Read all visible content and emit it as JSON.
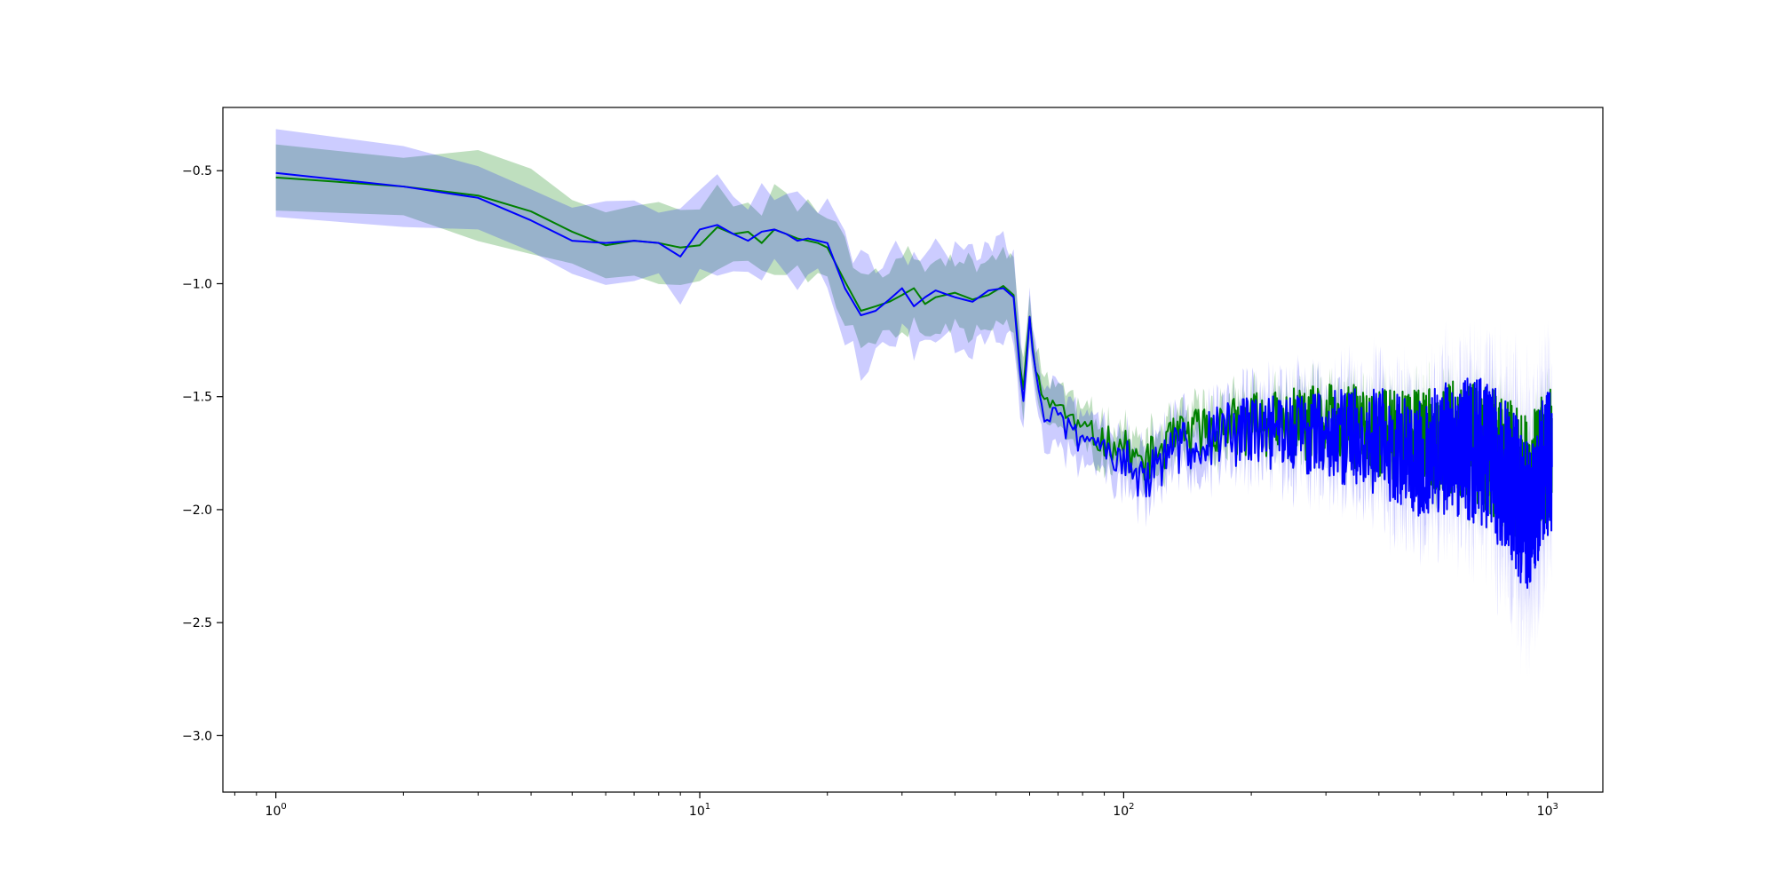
{
  "figure": {
    "background": "#ffffff"
  },
  "chart_data": {
    "type": "line",
    "title": "",
    "xlabel": "",
    "ylabel": "",
    "xscale": "log",
    "xlim": [
      0.75,
      1350
    ],
    "ylim": [
      -3.25,
      -0.22
    ],
    "x_ticks": [
      {
        "value": 1,
        "base": "10",
        "exp": "0"
      },
      {
        "value": 10,
        "base": "10",
        "exp": "1"
      },
      {
        "value": 100,
        "base": "10",
        "exp": "2"
      },
      {
        "value": 1000,
        "base": "10",
        "exp": "3"
      }
    ],
    "y_ticks": [
      {
        "value": -0.5,
        "label": "−0.5"
      },
      {
        "value": -1.0,
        "label": "−1.0"
      },
      {
        "value": -1.5,
        "label": "−1.5"
      },
      {
        "value": -2.0,
        "label": "−2.0"
      },
      {
        "value": -2.5,
        "label": "−2.5"
      },
      {
        "value": -3.0,
        "label": "−3.0"
      }
    ],
    "grid": false,
    "legend": "none",
    "x_range": [
      1,
      1024
    ],
    "series": [
      {
        "color": "#008000",
        "band_fill": "#008000",
        "band_opacity": 0.25,
        "anchors": [
          [
            1,
            -0.53
          ],
          [
            2,
            -0.57
          ],
          [
            3,
            -0.61
          ],
          [
            4,
            -0.68
          ],
          [
            5,
            -0.77
          ],
          [
            6,
            -0.83
          ],
          [
            7,
            -0.81
          ],
          [
            8,
            -0.82
          ],
          [
            9,
            -0.84
          ],
          [
            10,
            -0.83
          ],
          [
            11,
            -0.75
          ],
          [
            12,
            -0.78
          ],
          [
            13,
            -0.77
          ],
          [
            14,
            -0.82
          ],
          [
            15,
            -0.76
          ],
          [
            16,
            -0.78
          ],
          [
            17,
            -0.8
          ],
          [
            18,
            -0.81
          ],
          [
            19,
            -0.82
          ],
          [
            20,
            -0.84
          ],
          [
            22,
            -0.99
          ],
          [
            24,
            -1.12
          ],
          [
            26,
            -1.1
          ],
          [
            28,
            -1.08
          ],
          [
            30,
            -1.05
          ],
          [
            32,
            -1.02
          ],
          [
            34,
            -1.09
          ],
          [
            36,
            -1.06
          ],
          [
            40,
            -1.04
          ],
          [
            44,
            -1.07
          ],
          [
            48,
            -1.05
          ],
          [
            52,
            -1.01
          ],
          [
            55,
            -1.05
          ],
          [
            57,
            -1.37
          ],
          [
            58,
            -1.48
          ],
          [
            60,
            -1.14
          ],
          [
            62,
            -1.35
          ],
          [
            65,
            -1.55
          ],
          [
            70,
            -1.52
          ],
          [
            75,
            -1.6
          ],
          [
            80,
            -1.65
          ],
          [
            90,
            -1.7
          ],
          [
            100,
            -1.72
          ],
          [
            110,
            -1.8
          ],
          [
            130,
            -1.7
          ],
          [
            150,
            -1.65
          ],
          [
            200,
            -1.62
          ],
          [
            300,
            -1.62
          ],
          [
            400,
            -1.65
          ],
          [
            500,
            -1.7
          ],
          [
            600,
            -1.68
          ],
          [
            700,
            -1.72
          ],
          [
            800,
            -1.8
          ],
          [
            900,
            -1.9
          ],
          [
            1000,
            -1.75
          ],
          [
            1024,
            -1.7
          ]
        ],
        "band_halfwidth": [
          [
            1,
            0.16
          ],
          [
            3,
            0.16
          ],
          [
            10,
            0.16
          ],
          [
            20,
            0.15
          ],
          [
            30,
            0.15
          ],
          [
            55,
            0.15
          ],
          [
            60,
            0.1
          ],
          [
            100,
            0.08
          ],
          [
            200,
            0.08
          ],
          [
            400,
            0.09
          ],
          [
            1024,
            0.12
          ]
        ],
        "noise_amplitude": [
          [
            1,
            0
          ],
          [
            55,
            0
          ],
          [
            60,
            0.04
          ],
          [
            100,
            0.08
          ],
          [
            200,
            0.14
          ],
          [
            400,
            0.2
          ],
          [
            600,
            0.25
          ],
          [
            800,
            0.3
          ],
          [
            1024,
            0.3
          ]
        ],
        "seed": 11
      },
      {
        "color": "#0000ff",
        "band_fill": "#0000ff",
        "band_opacity": 0.2,
        "anchors": [
          [
            1,
            -0.51
          ],
          [
            2,
            -0.57
          ],
          [
            3,
            -0.62
          ],
          [
            4,
            -0.72
          ],
          [
            5,
            -0.81
          ],
          [
            6,
            -0.82
          ],
          [
            7,
            -0.81
          ],
          [
            8,
            -0.82
          ],
          [
            9,
            -0.88
          ],
          [
            10,
            -0.76
          ],
          [
            11,
            -0.74
          ],
          [
            12,
            -0.78
          ],
          [
            13,
            -0.81
          ],
          [
            14,
            -0.77
          ],
          [
            15,
            -0.76
          ],
          [
            16,
            -0.78
          ],
          [
            17,
            -0.81
          ],
          [
            18,
            -0.8
          ],
          [
            19,
            -0.81
          ],
          [
            20,
            -0.82
          ],
          [
            22,
            -1.02
          ],
          [
            24,
            -1.14
          ],
          [
            26,
            -1.12
          ],
          [
            28,
            -1.07
          ],
          [
            30,
            -1.02
          ],
          [
            32,
            -1.1
          ],
          [
            34,
            -1.06
          ],
          [
            36,
            -1.03
          ],
          [
            40,
            -1.06
          ],
          [
            44,
            -1.08
          ],
          [
            48,
            -1.03
          ],
          [
            52,
            -1.02
          ],
          [
            55,
            -1.06
          ],
          [
            57,
            -1.4
          ],
          [
            58,
            -1.52
          ],
          [
            60,
            -1.13
          ],
          [
            62,
            -1.4
          ],
          [
            65,
            -1.58
          ],
          [
            70,
            -1.6
          ],
          [
            75,
            -1.66
          ],
          [
            80,
            -1.7
          ],
          [
            90,
            -1.72
          ],
          [
            100,
            -1.76
          ],
          [
            110,
            -1.88
          ],
          [
            130,
            -1.75
          ],
          [
            150,
            -1.68
          ],
          [
            200,
            -1.65
          ],
          [
            300,
            -1.66
          ],
          [
            400,
            -1.7
          ],
          [
            500,
            -1.76
          ],
          [
            600,
            -1.72
          ],
          [
            700,
            -1.75
          ],
          [
            800,
            -1.85
          ],
          [
            900,
            -2.05
          ],
          [
            1000,
            -1.8
          ],
          [
            1024,
            -1.75
          ]
        ],
        "band_halfwidth": [
          [
            1,
            0.15
          ],
          [
            3,
            0.15
          ],
          [
            10,
            0.18
          ],
          [
            20,
            0.16
          ],
          [
            24,
            0.22
          ],
          [
            30,
            0.18
          ],
          [
            55,
            0.2
          ],
          [
            60,
            0.12
          ],
          [
            100,
            0.1
          ],
          [
            200,
            0.12
          ],
          [
            400,
            0.18
          ],
          [
            700,
            0.22
          ],
          [
            900,
            0.35
          ],
          [
            1024,
            0.25
          ]
        ],
        "noise_amplitude": [
          [
            1,
            0
          ],
          [
            55,
            0
          ],
          [
            60,
            0.04
          ],
          [
            100,
            0.09
          ],
          [
            200,
            0.16
          ],
          [
            400,
            0.24
          ],
          [
            600,
            0.3
          ],
          [
            800,
            0.36
          ],
          [
            1024,
            0.35
          ]
        ],
        "seed": 29
      }
    ]
  }
}
